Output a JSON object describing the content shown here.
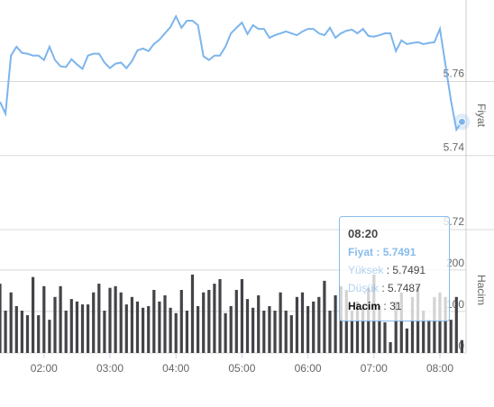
{
  "chart_data": {
    "type": "stock",
    "x": [
      "01:20",
      "01:25",
      "01:30",
      "01:35",
      "01:40",
      "01:45",
      "01:50",
      "01:55",
      "02:00",
      "02:05",
      "02:10",
      "02:15",
      "02:20",
      "02:25",
      "02:30",
      "02:35",
      "02:40",
      "02:45",
      "02:50",
      "02:55",
      "03:00",
      "03:05",
      "03:10",
      "03:15",
      "03:20",
      "03:25",
      "03:30",
      "03:35",
      "03:40",
      "03:45",
      "03:50",
      "03:55",
      "04:00",
      "04:05",
      "04:10",
      "04:15",
      "04:20",
      "04:25",
      "04:30",
      "04:35",
      "04:40",
      "04:45",
      "04:50",
      "04:55",
      "05:00",
      "05:05",
      "05:10",
      "05:15",
      "05:20",
      "05:25",
      "05:30",
      "05:35",
      "05:40",
      "05:45",
      "05:50",
      "05:55",
      "06:00",
      "06:05",
      "06:10",
      "06:15",
      "06:20",
      "06:25",
      "06:30",
      "06:35",
      "06:40",
      "06:45",
      "06:50",
      "06:55",
      "07:00",
      "07:05",
      "07:10",
      "07:15",
      "07:20",
      "07:25",
      "07:30",
      "07:35",
      "07:40",
      "07:45",
      "07:50",
      "07:55",
      "08:00",
      "08:05",
      "08:10",
      "08:15",
      "08:20"
    ],
    "series": [
      {
        "name": "Fiyat",
        "type": "line",
        "color": "#7cb5ec",
        "values": [
          5.7545,
          5.7513,
          5.767,
          5.7694,
          5.7677,
          5.7675,
          5.767,
          5.767,
          5.7658,
          5.7694,
          5.7658,
          5.7641,
          5.7639,
          5.766,
          5.7646,
          5.7634,
          5.767,
          5.7675,
          5.7675,
          5.7651,
          5.7636,
          5.7648,
          5.7651,
          5.7636,
          5.7655,
          5.7684,
          5.7689,
          5.7682,
          5.7701,
          5.7713,
          5.773,
          5.7747,
          5.7776,
          5.7745,
          5.7764,
          5.7764,
          5.7752,
          5.7668,
          5.7658,
          5.767,
          5.767,
          5.7694,
          5.773,
          5.7745,
          5.7759,
          5.7728,
          5.7752,
          5.7742,
          5.7742,
          5.7718,
          5.7725,
          5.773,
          5.7735,
          5.773,
          5.7725,
          5.7735,
          5.7742,
          5.7742,
          5.773,
          5.7725,
          5.7745,
          5.7718,
          5.773,
          5.7737,
          5.774,
          5.773,
          5.7742,
          5.7723,
          5.7721,
          5.7725,
          5.773,
          5.773,
          5.7682,
          5.7711,
          5.7701,
          5.7704,
          5.7706,
          5.7701,
          5.7704,
          5.7706,
          5.7742,
          5.7646,
          5.7549,
          5.747,
          5.7491
        ]
      },
      {
        "name": "Hacim",
        "type": "column",
        "color": "#434348",
        "axis": "y2",
        "values": [
          167,
          102,
          146,
          113,
          102,
          91,
          183,
          91,
          161,
          80,
          135,
          161,
          102,
          130,
          124,
          117,
          117,
          146,
          167,
          102,
          157,
          161,
          146,
          117,
          135,
          124,
          109,
          113,
          152,
          124,
          139,
          109,
          96,
          152,
          102,
          189,
          113,
          146,
          152,
          167,
          178,
          96,
          113,
          152,
          178,
          130,
          109,
          139,
          102,
          113,
          102,
          146,
          102,
          91,
          135,
          146,
          113,
          124,
          135,
          174,
          102,
          139,
          161,
          152,
          102,
          124,
          109,
          157,
          189,
          113,
          74,
          26,
          124,
          146,
          59,
          135,
          161,
          102,
          80,
          135,
          146,
          135,
          80,
          135,
          31
        ]
      }
    ],
    "ylim": [
      5.72,
      5.782
    ],
    "yticks": [
      5.72,
      5.74,
      5.76
    ],
    "y2lim": [
      0,
      280
    ],
    "y2ticks": [
      0,
      100,
      200
    ],
    "xticks": [
      "02:00",
      "03:00",
      "04:00",
      "05:00",
      "06:00",
      "07:00",
      "08:00"
    ],
    "grid": true,
    "tooltip": {
      "high_label": "Yüksek",
      "high": 5.7491,
      "low_label": "Düşük",
      "low": 5.7487,
      "separator": ":"
    }
  }
}
